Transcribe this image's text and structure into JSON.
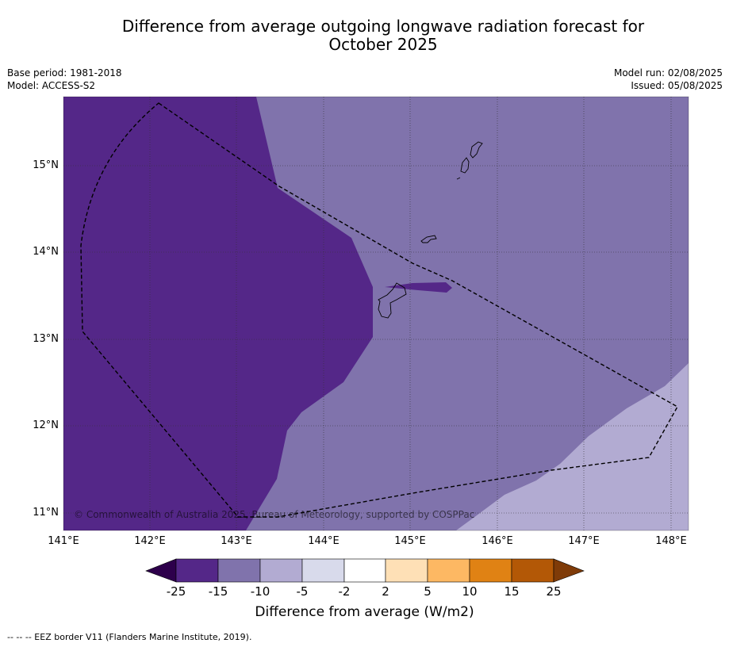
{
  "title_line1": "Difference from average outgoing longwave radiation forecast for",
  "title_line2": "October 2025",
  "base_period": "Base period: 1981-2018",
  "model": "Model: ACCESS-S2",
  "model_run": "Model run: 02/08/2025",
  "issued": "Issued: 05/08/2025",
  "copyright": "© Commonwealth of Australia 2025, Bureau of Meteorology, supported by COSPPac",
  "lat_labels": [
    "15°N",
    "14°N",
    "13°N",
    "12°N",
    "11°N"
  ],
  "lon_labels": [
    "141°E",
    "142°E",
    "143°E",
    "144°E",
    "145°E",
    "146°E",
    "147°E",
    "148°E"
  ],
  "colorbar": {
    "label": "Difference from average (W/m2)",
    "ticks": [
      "-25",
      "-15",
      "-10",
      "-5",
      "-2",
      "2",
      "5",
      "10",
      "15",
      "25"
    ],
    "colors": [
      "#2d004b",
      "#542788",
      "#8073ac",
      "#b2abd2",
      "#d8daeb",
      "#ffffff",
      "#fee0b6",
      "#fdb863",
      "#e08214",
      "#b35806",
      "#7f3b08"
    ]
  },
  "footnote": "-- -- -- EEZ border V11 (Flanders Marine Institute, 2019).",
  "colors": {
    "dark_purple": "#542788",
    "mid_purple": "#8073ac",
    "light_purple": "#b2abd2"
  }
}
